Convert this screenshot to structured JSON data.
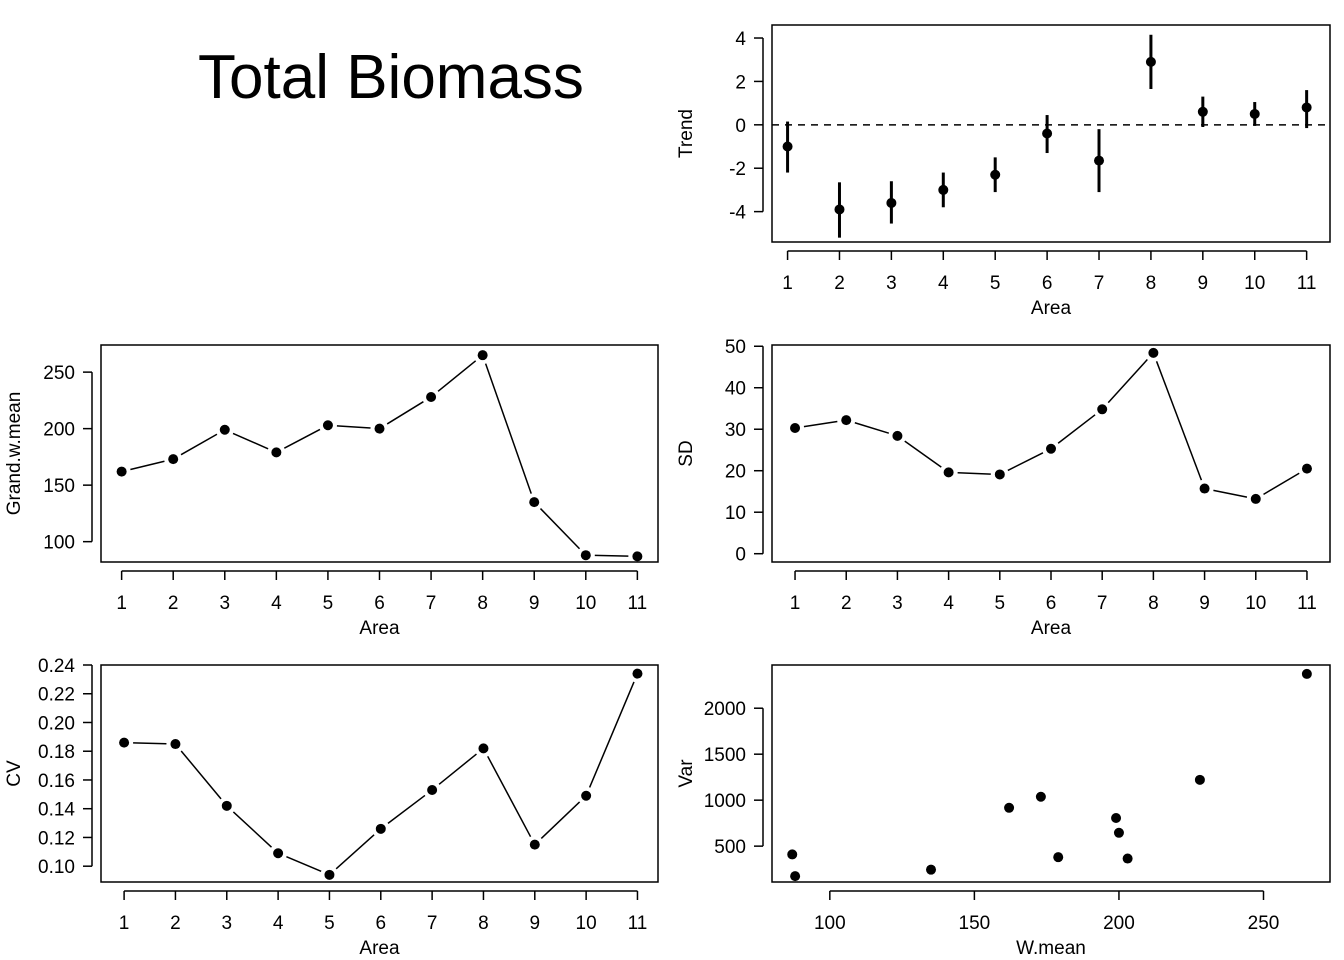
{
  "title": "Total Biomass",
  "chart_data": [
    {
      "id": "trend",
      "type": "scatter",
      "error_bars": true,
      "xlabel": "Area",
      "ylabel": "Trend",
      "xticks": [
        1,
        2,
        3,
        4,
        5,
        6,
        7,
        8,
        9,
        10,
        11
      ],
      "yticks": [
        -4,
        -2,
        0,
        2,
        4
      ],
      "xlim": [
        0.7,
        11.45
      ],
      "ylim": [
        -5.4,
        4.6
      ],
      "reference_line": {
        "y": 0,
        "style": "dashed"
      },
      "x": [
        1,
        2,
        3,
        4,
        5,
        6,
        7,
        8,
        9,
        10,
        11
      ],
      "y": [
        -1.0,
        -3.9,
        -3.6,
        -3.0,
        -2.3,
        -0.4,
        -1.65,
        2.9,
        0.6,
        0.5,
        0.8
      ],
      "lower": [
        -2.2,
        -5.2,
        -4.55,
        -3.8,
        -3.1,
        -1.3,
        -3.1,
        1.65,
        -0.1,
        -0.05,
        -0.15
      ],
      "upper": [
        0.15,
        -2.65,
        -2.6,
        -2.2,
        -1.5,
        0.45,
        -0.2,
        4.15,
        1.3,
        1.05,
        1.6
      ]
    },
    {
      "id": "grand-w-mean",
      "type": "line",
      "markers": true,
      "xlabel": "Area",
      "ylabel": "Grand.w.mean",
      "xticks": [
        1,
        2,
        3,
        4,
        5,
        6,
        7,
        8,
        9,
        10,
        11
      ],
      "yticks": [
        100,
        150,
        200,
        250
      ],
      "xlim": [
        0.6,
        11.4
      ],
      "ylim": [
        82,
        274
      ],
      "x": [
        1,
        2,
        3,
        4,
        5,
        6,
        7,
        8,
        9,
        10,
        11
      ],
      "y": [
        162,
        173,
        199,
        179,
        203,
        200,
        228,
        265,
        135,
        88,
        87
      ]
    },
    {
      "id": "sd",
      "type": "line",
      "markers": true,
      "xlabel": "Area",
      "ylabel": "SD",
      "xticks": [
        1,
        2,
        3,
        4,
        5,
        6,
        7,
        8,
        9,
        10,
        11
      ],
      "yticks": [
        0,
        10,
        20,
        30,
        40,
        50
      ],
      "xlim": [
        0.55,
        11.45
      ],
      "ylim": [
        -2,
        50.3
      ],
      "x": [
        1,
        2,
        3,
        4,
        5,
        6,
        7,
        8,
        9,
        10,
        11
      ],
      "y": [
        30.3,
        32.2,
        28.4,
        19.6,
        19.1,
        25.3,
        34.8,
        48.4,
        15.7,
        13.2,
        20.5
      ]
    },
    {
      "id": "cv",
      "type": "line",
      "markers": true,
      "xlabel": "Area",
      "ylabel": "CV",
      "xticks": [
        1,
        2,
        3,
        4,
        5,
        6,
        7,
        8,
        9,
        10,
        11
      ],
      "yticks": [
        0.1,
        0.12,
        0.14,
        0.16,
        0.18,
        0.2,
        0.22,
        0.24
      ],
      "ytick_labels": [
        "0.10",
        "0.12",
        "0.14",
        "0.16",
        "0.18",
        "0.20",
        "0.22",
        "0.24"
      ],
      "xlim": [
        0.55,
        11.4
      ],
      "ylim": [
        0.089,
        0.24
      ],
      "x": [
        1,
        2,
        3,
        4,
        5,
        6,
        7,
        8,
        9,
        10,
        11
      ],
      "y": [
        0.186,
        0.185,
        0.142,
        0.109,
        0.094,
        0.126,
        0.153,
        0.182,
        0.115,
        0.149,
        0.234
      ]
    },
    {
      "id": "var",
      "type": "scatter",
      "xlabel": "W.mean",
      "ylabel": "Var",
      "xticks": [
        100,
        150,
        200,
        250
      ],
      "yticks": [
        500,
        1000,
        1500,
        2000
      ],
      "xlim": [
        80,
        273
      ],
      "ylim": [
        110,
        2470
      ],
      "x": [
        87,
        88,
        135,
        162,
        173,
        179,
        199,
        200,
        203,
        228,
        265
      ],
      "y": [
        410,
        174,
        244,
        917,
        1037,
        380,
        806,
        645,
        365,
        1221,
        2373
      ]
    }
  ]
}
